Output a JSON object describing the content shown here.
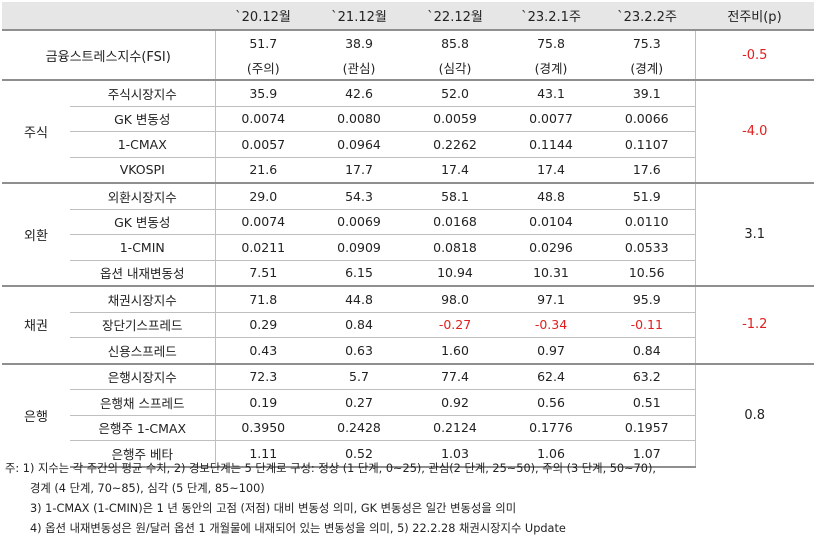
{
  "headers": [
    "",
    "",
    "`20.12월",
    "`21.12월",
    "`22.12월",
    "`23.2.1주",
    "`23.2.2주",
    "전주비(p)"
  ],
  "fsi": {
    "label": "금융스트레스지수(FSI)",
    "values": [
      "51.7",
      "38.9",
      "85.8",
      "75.8",
      "75.3"
    ],
    "levels": [
      "(주의)",
      "(관심)",
      "(심각)",
      "(경계)",
      "(경계)"
    ],
    "change": "-0.5"
  },
  "groups": [
    {
      "name": "주식",
      "change": "-4.0",
      "rows": [
        {
          "label": "주식시장지수",
          "values": [
            "35.9",
            "42.6",
            "52.0",
            "43.1",
            "39.1"
          ]
        },
        {
          "label": "GK 변동성",
          "values": [
            "0.0074",
            "0.0080",
            "0.0059",
            "0.0077",
            "0.0066"
          ]
        },
        {
          "label": "1-CMAX",
          "values": [
            "0.0057",
            "0.0964",
            "0.2262",
            "0.1144",
            "0.1107"
          ]
        },
        {
          "label": "VKOSPI",
          "values": [
            "21.6",
            "17.7",
            "17.4",
            "17.4",
            "17.6"
          ]
        }
      ]
    },
    {
      "name": "외환",
      "change": "3.1",
      "rows": [
        {
          "label": "외환시장지수",
          "values": [
            "29.0",
            "54.3",
            "58.1",
            "48.8",
            "51.9"
          ]
        },
        {
          "label": "GK 변동성",
          "values": [
            "0.0074",
            "0.0069",
            "0.0168",
            "0.0104",
            "0.0110"
          ]
        },
        {
          "label": "1-CMIN",
          "values": [
            "0.0211",
            "0.0909",
            "0.0818",
            "0.0296",
            "0.0533"
          ]
        },
        {
          "label": "옵션 내재변동성",
          "values": [
            "7.51",
            "6.15",
            "10.94",
            "10.31",
            "10.56"
          ]
        }
      ]
    },
    {
      "name": "채권",
      "change": "-1.2",
      "rows": [
        {
          "label": "채권시장지수",
          "values": [
            "71.8",
            "44.8",
            "98.0",
            "97.1",
            "95.9"
          ]
        },
        {
          "label": "장단기스프레드",
          "values": [
            "0.29",
            "0.84",
            "-0.27",
            "-0.34",
            "-0.11"
          ]
        },
        {
          "label": "신용스프레드",
          "values": [
            "0.43",
            "0.63",
            "1.60",
            "0.97",
            "0.84"
          ]
        }
      ]
    },
    {
      "name": "은행",
      "change": "0.8",
      "rows": [
        {
          "label": "은행시장지수",
          "values": [
            "72.3",
            "5.7",
            "77.4",
            "62.4",
            "63.2"
          ]
        },
        {
          "label": "은행채 스프레드",
          "values": [
            "0.19",
            "0.27",
            "0.92",
            "0.56",
            "0.51"
          ]
        },
        {
          "label": "은행주 1-CMAX",
          "values": [
            "0.3950",
            "0.2428",
            "0.2124",
            "0.1776",
            "0.1957"
          ]
        },
        {
          "label": "은행주 베타",
          "values": [
            "1.11",
            "0.52",
            "1.03",
            "1.06",
            "1.07"
          ]
        }
      ]
    }
  ],
  "notes": [
    "주: 1) 지수는 각 주간의 평균 수치, 2) 경보단계는 5 단계로 구성: 정상 (1 단계, 0~25), 관심(2 단계, 25~50), 주의 (3 단계, 50~70),",
    "경계 (4 단계, 70~85), 심각 (5 단계, 85~100)",
    "3) 1-CMAX (1-CMIN)은 1 년 동안의 고점 (저점) 대비 변동성 의미, GK 변동성은 일간 변동성을 의미",
    "4) 옵션 내재변동성은 원/달러 옵션 1 개월물에 내재되어 있는 변동성을 의미, 5) 22.2.28 채권시장지수 Update"
  ],
  "colors": {
    "negative": "#e02020",
    "header_bg": "#e6e6e6",
    "rule": "#8f8f8f",
    "grid": "#bfbfbf"
  }
}
